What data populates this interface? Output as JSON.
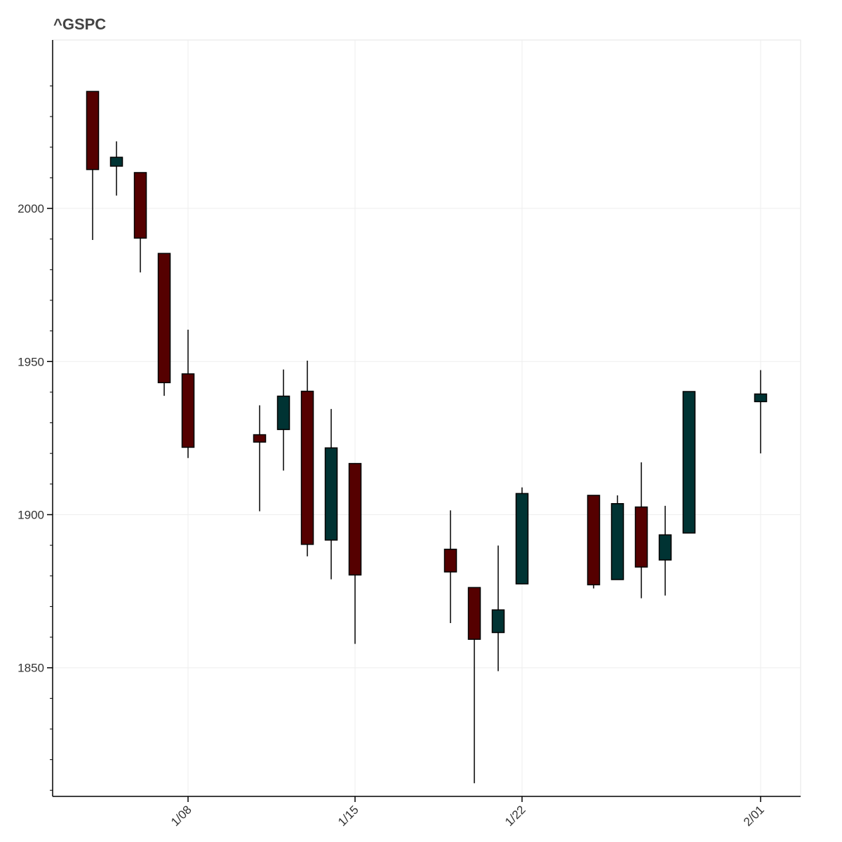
{
  "chart_data": {
    "type": "candlestick",
    "title": "^GSPC",
    "xlabel": "",
    "ylabel": "",
    "ylim": [
      1808,
      2055
    ],
    "yticks": [
      1850,
      1900,
      1950,
      2000
    ],
    "xticks": [
      {
        "date": "2016-01-08",
        "label": "1/08"
      },
      {
        "date": "2016-01-15",
        "label": "1/15"
      },
      {
        "date": "2016-01-22",
        "label": "1/22"
      },
      {
        "date": "2016-02-01",
        "label": "2/01"
      }
    ],
    "grid": true,
    "colors": {
      "up": "#003333",
      "down": "#550000",
      "wick": "#000000"
    },
    "candles": [
      {
        "date": "2016-01-04",
        "open": 2038.2,
        "high": 2038.2,
        "low": 1989.7,
        "close": 2012.7
      },
      {
        "date": "2016-01-05",
        "open": 2013.8,
        "high": 2021.9,
        "low": 2004.2,
        "close": 2016.7
      },
      {
        "date": "2016-01-06",
        "open": 2011.7,
        "high": 2011.7,
        "low": 1979.1,
        "close": 1990.3
      },
      {
        "date": "2016-01-07",
        "open": 1985.3,
        "high": 1985.3,
        "low": 1938.8,
        "close": 1943.1
      },
      {
        "date": "2016-01-08",
        "open": 1945.97,
        "high": 1960.4,
        "low": 1918.5,
        "close": 1922.0
      },
      {
        "date": "2016-01-11",
        "open": 1926.1,
        "high": 1935.7,
        "low": 1901.1,
        "close": 1923.7
      },
      {
        "date": "2016-01-12",
        "open": 1927.8,
        "high": 1947.4,
        "low": 1914.4,
        "close": 1938.7
      },
      {
        "date": "2016-01-13",
        "open": 1940.3,
        "high": 1950.3,
        "low": 1886.4,
        "close": 1890.3
      },
      {
        "date": "2016-01-14",
        "open": 1891.7,
        "high": 1934.5,
        "low": 1878.9,
        "close": 1921.8
      },
      {
        "date": "2016-01-15",
        "open": 1916.7,
        "high": 1916.7,
        "low": 1857.8,
        "close": 1880.3
      },
      {
        "date": "2016-01-19",
        "open": 1888.7,
        "high": 1901.4,
        "low": 1864.6,
        "close": 1881.3
      },
      {
        "date": "2016-01-20",
        "open": 1876.2,
        "high": 1876.2,
        "low": 1812.3,
        "close": 1859.3
      },
      {
        "date": "2016-01-21",
        "open": 1861.5,
        "high": 1889.9,
        "low": 1848.9,
        "close": 1868.9
      },
      {
        "date": "2016-01-22",
        "open": 1877.4,
        "high": 1908.9,
        "low": 1877.4,
        "close": 1906.9
      },
      {
        "date": "2016-01-25",
        "open": 1906.3,
        "high": 1906.3,
        "low": 1875.9,
        "close": 1877.1
      },
      {
        "date": "2016-01-26",
        "open": 1878.8,
        "high": 1906.3,
        "low": 1878.8,
        "close": 1903.6
      },
      {
        "date": "2016-01-27",
        "open": 1902.5,
        "high": 1917.1,
        "low": 1872.7,
        "close": 1882.9
      },
      {
        "date": "2016-01-28",
        "open": 1885.2,
        "high": 1902.9,
        "low": 1873.6,
        "close": 1893.4
      },
      {
        "date": "2016-01-29",
        "open": 1894.0,
        "high": 1940.2,
        "low": 1894.0,
        "close": 1940.2
      },
      {
        "date": "2016-02-01",
        "open": 1936.9,
        "high": 1947.2,
        "low": 1920.0,
        "close": 1939.4
      }
    ]
  }
}
